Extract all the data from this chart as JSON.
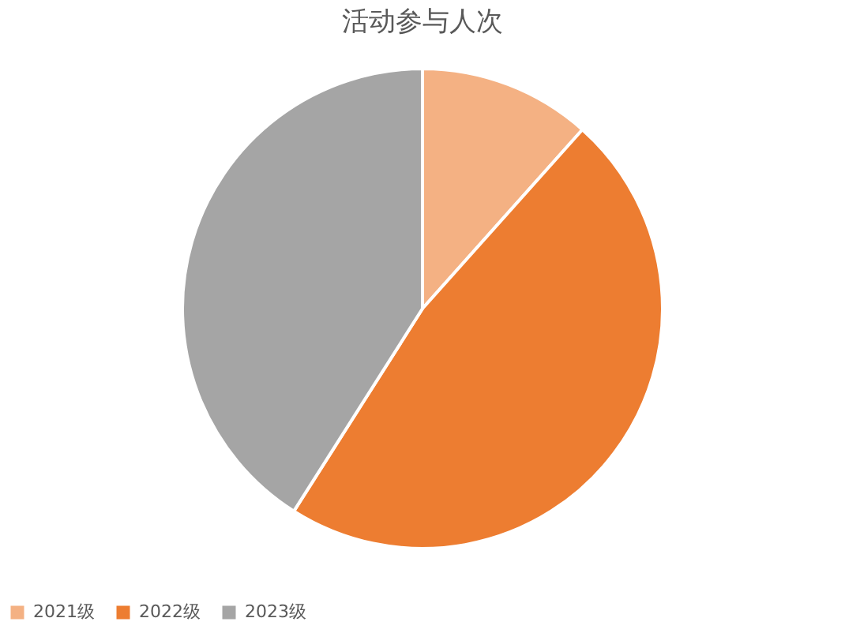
{
  "chart_data": {
    "type": "pie",
    "title": "活动参与人次",
    "categories": [
      "2021级",
      "2022级",
      "2023级"
    ],
    "values": [
      11.6,
      47.4,
      41.0
    ],
    "colors": [
      "#f4b183",
      "#ed7d31",
      "#a5a5a5"
    ],
    "legend": "bottom"
  }
}
